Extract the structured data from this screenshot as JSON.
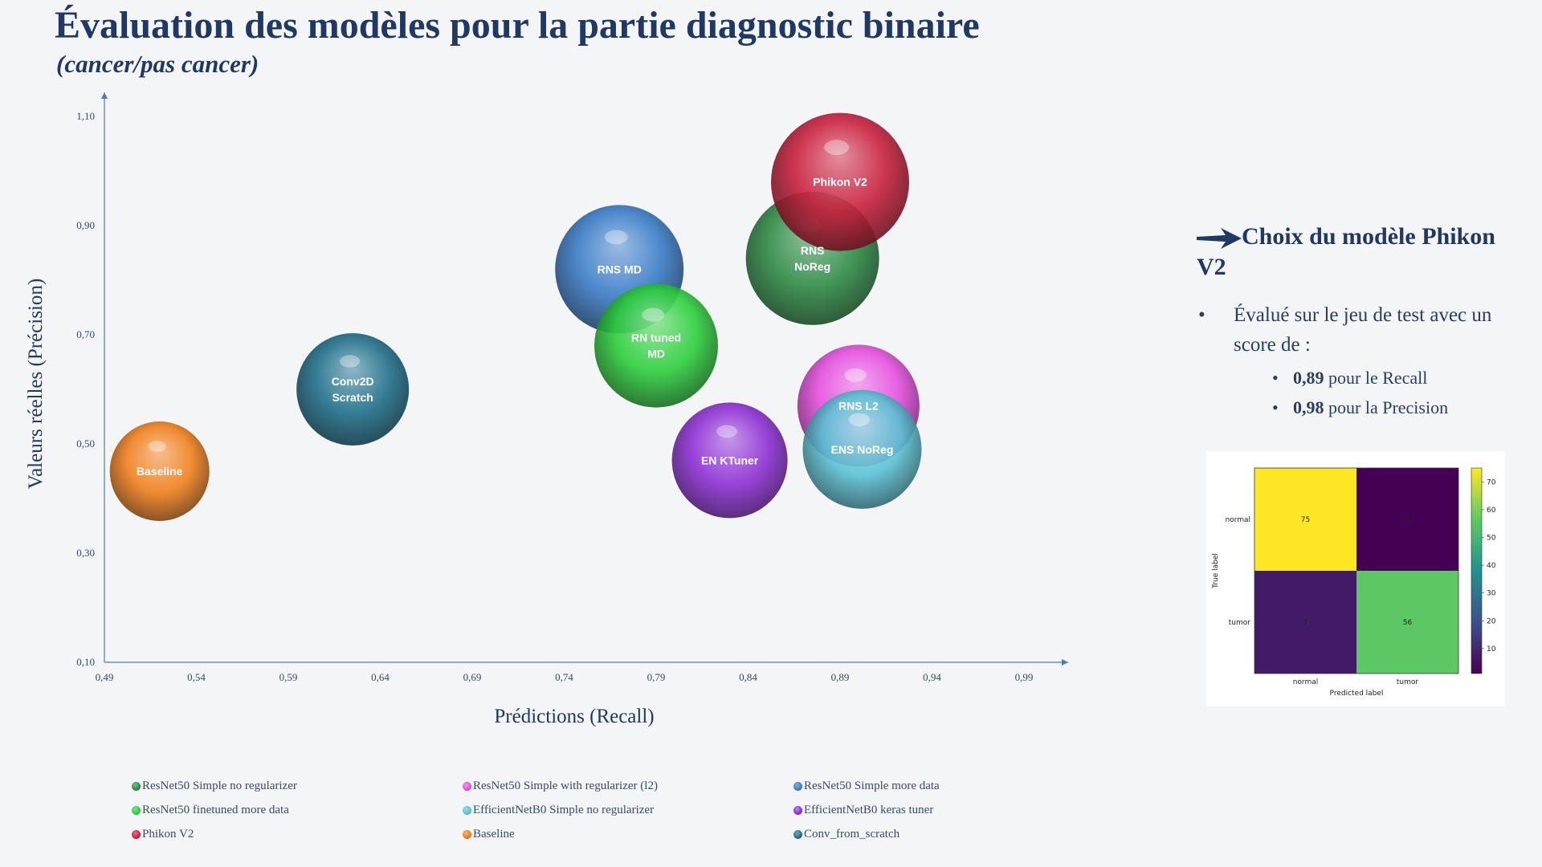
{
  "title": "Évaluation des modèles pour la partie diagnostic binaire",
  "subtitle": "(cancer/pas cancer)",
  "chart_data": {
    "type": "bubble",
    "xlabel": "Prédictions (Recall)",
    "ylabel": "Valeurs réelles (Précision)",
    "xlim": [
      0.49,
      1.01
    ],
    "ylim": [
      0.1,
      1.1
    ],
    "x_ticks": [
      "0,49",
      "0,54",
      "0,59",
      "0,64",
      "0,69",
      "0,74",
      "0,79",
      "0,84",
      "0,89",
      "0,94",
      "0,99"
    ],
    "y_ticks": [
      "0,10",
      "0,30",
      "0,50",
      "0,70",
      "0,90",
      "1,10"
    ],
    "series": [
      {
        "name": "ResNet50 Simple no regularizer",
        "label": "RNS\nNoReg",
        "x": 0.875,
        "y": 0.84,
        "r": 83,
        "color": "#2e8b45"
      },
      {
        "name": "ResNet50 Simple with regularizer (l2)",
        "label": "RNS L2",
        "x": 0.9,
        "y": 0.57,
        "r": 76,
        "color": "#e64fe0"
      },
      {
        "name": "ResNet50 Simple more data",
        "label": "RNS MD",
        "x": 0.77,
        "y": 0.82,
        "r": 80,
        "color": "#3a7cc7"
      },
      {
        "name": "ResNet50 finetuned more data",
        "label": "RN tuned\nMD",
        "x": 0.79,
        "y": 0.68,
        "r": 77,
        "color": "#2ccf3c"
      },
      {
        "name": "EfficientNetB0 Simple no regularizer",
        "label": "ENS NoReg",
        "x": 0.902,
        "y": 0.49,
        "r": 74,
        "color": "#5bc3d6"
      },
      {
        "name": "EfficientNetB0 keras tuner",
        "label": "EN KTuner",
        "x": 0.83,
        "y": 0.47,
        "r": 72,
        "color": "#8e2fd4"
      },
      {
        "name": "Phikon V2",
        "label": "Phikon V2",
        "x": 0.89,
        "y": 0.98,
        "r": 86,
        "color": "#c91f3c"
      },
      {
        "name": "Baseline",
        "label": "Baseline",
        "x": 0.52,
        "y": 0.45,
        "r": 62,
        "color": "#f07f1c"
      },
      {
        "name": "Conv_from_scratch",
        "label": "Conv2D\nScratch",
        "x": 0.625,
        "y": 0.6,
        "r": 70,
        "color": "#1f6f8a"
      }
    ],
    "legend_position": "bottom"
  },
  "conclusion": {
    "choice": "Choix du modèle Phikon V2",
    "bullet": "Évalué sur le jeu de test avec un score de :",
    "recall_value": "0,89",
    "recall_text": " pour le Recall",
    "precision_value": "0,98",
    "precision_text": " pour la Precision"
  },
  "confusion_matrix": {
    "row_labels": [
      "normal",
      "tumor"
    ],
    "col_labels": [
      "normal",
      "tumor"
    ],
    "values": [
      [
        75,
        1
      ],
      [
        7,
        56
      ]
    ],
    "xlabel": "Predicted label",
    "ylabel": "True label",
    "colorbar_ticks": [
      "70",
      "60",
      "50",
      "40",
      "30",
      "20",
      "10"
    ]
  }
}
